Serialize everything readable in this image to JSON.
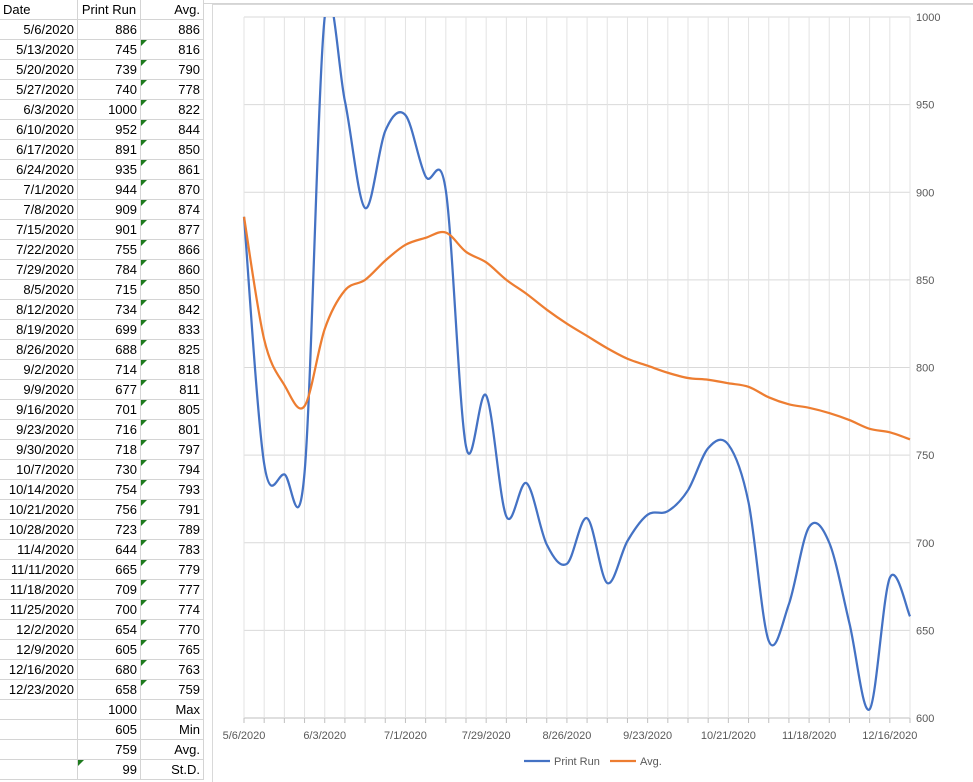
{
  "sheet": {
    "headers": [
      "Date",
      "Print Run",
      "Avg."
    ],
    "rows": [
      {
        "date": "5/6/2020",
        "run": "886",
        "avg": "886"
      },
      {
        "date": "5/13/2020",
        "run": "745",
        "avg": "816"
      },
      {
        "date": "5/20/2020",
        "run": "739",
        "avg": "790"
      },
      {
        "date": "5/27/2020",
        "run": "740",
        "avg": "778"
      },
      {
        "date": "6/3/2020",
        "run": "1000",
        "avg": "822"
      },
      {
        "date": "6/10/2020",
        "run": "952",
        "avg": "844"
      },
      {
        "date": "6/17/2020",
        "run": "891",
        "avg": "850"
      },
      {
        "date": "6/24/2020",
        "run": "935",
        "avg": "861"
      },
      {
        "date": "7/1/2020",
        "run": "944",
        "avg": "870"
      },
      {
        "date": "7/8/2020",
        "run": "909",
        "avg": "874"
      },
      {
        "date": "7/15/2020",
        "run": "901",
        "avg": "877"
      },
      {
        "date": "7/22/2020",
        "run": "755",
        "avg": "866"
      },
      {
        "date": "7/29/2020",
        "run": "784",
        "avg": "860"
      },
      {
        "date": "8/5/2020",
        "run": "715",
        "avg": "850"
      },
      {
        "date": "8/12/2020",
        "run": "734",
        "avg": "842"
      },
      {
        "date": "8/19/2020",
        "run": "699",
        "avg": "833"
      },
      {
        "date": "8/26/2020",
        "run": "688",
        "avg": "825"
      },
      {
        "date": "9/2/2020",
        "run": "714",
        "avg": "818"
      },
      {
        "date": "9/9/2020",
        "run": "677",
        "avg": "811"
      },
      {
        "date": "9/16/2020",
        "run": "701",
        "avg": "805"
      },
      {
        "date": "9/23/2020",
        "run": "716",
        "avg": "801"
      },
      {
        "date": "9/30/2020",
        "run": "718",
        "avg": "797"
      },
      {
        "date": "10/7/2020",
        "run": "730",
        "avg": "794"
      },
      {
        "date": "10/14/2020",
        "run": "754",
        "avg": "793"
      },
      {
        "date": "10/21/2020",
        "run": "756",
        "avg": "791"
      },
      {
        "date": "10/28/2020",
        "run": "723",
        "avg": "789"
      },
      {
        "date": "11/4/2020",
        "run": "644",
        "avg": "783"
      },
      {
        "date": "11/11/2020",
        "run": "665",
        "avg": "779"
      },
      {
        "date": "11/18/2020",
        "run": "709",
        "avg": "777"
      },
      {
        "date": "11/25/2020",
        "run": "700",
        "avg": "774"
      },
      {
        "date": "12/2/2020",
        "run": "654",
        "avg": "770"
      },
      {
        "date": "12/9/2020",
        "run": "605",
        "avg": "765"
      },
      {
        "date": "12/16/2020",
        "run": "680",
        "avg": "763"
      },
      {
        "date": "12/23/2020",
        "run": "658",
        "avg": "759"
      }
    ],
    "summary": [
      {
        "value": "1000",
        "label": "Max"
      },
      {
        "value": "605",
        "label": "Min"
      },
      {
        "value": "759",
        "label": "Avg."
      },
      {
        "value": "99",
        "label": "St.D."
      }
    ],
    "flag_color": "#1e7a1e"
  },
  "chart_data": {
    "type": "line",
    "x": [
      "5/6/2020",
      "5/13/2020",
      "5/20/2020",
      "5/27/2020",
      "6/3/2020",
      "6/10/2020",
      "6/17/2020",
      "6/24/2020",
      "7/1/2020",
      "7/8/2020",
      "7/15/2020",
      "7/22/2020",
      "7/29/2020",
      "8/5/2020",
      "8/12/2020",
      "8/19/2020",
      "8/26/2020",
      "9/2/2020",
      "9/9/2020",
      "9/16/2020",
      "9/23/2020",
      "9/30/2020",
      "10/7/2020",
      "10/14/2020",
      "10/21/2020",
      "10/28/2020",
      "11/4/2020",
      "11/11/2020",
      "11/18/2020",
      "11/25/2020",
      "12/2/2020",
      "12/9/2020",
      "12/16/2020",
      "12/23/2020"
    ],
    "x_tick_labels": [
      "5/6/2020",
      "6/3/2020",
      "7/1/2020",
      "7/29/2020",
      "8/26/2020",
      "9/23/2020",
      "10/21/2020",
      "11/18/2020",
      "12/16/2020"
    ],
    "series": [
      {
        "name": "Print Run",
        "color": "#4472c4",
        "values": [
          886,
          745,
          739,
          740,
          1000,
          952,
          891,
          935,
          944,
          909,
          901,
          755,
          784,
          715,
          734,
          699,
          688,
          714,
          677,
          701,
          716,
          718,
          730,
          754,
          756,
          723,
          644,
          665,
          709,
          700,
          654,
          605,
          680,
          658
        ]
      },
      {
        "name": "Avg.",
        "color": "#ed7d31",
        "values": [
          886,
          816,
          790,
          778,
          822,
          844,
          850,
          861,
          870,
          874,
          877,
          866,
          860,
          850,
          842,
          833,
          825,
          818,
          811,
          805,
          801,
          797,
          794,
          793,
          791,
          789,
          783,
          779,
          777,
          774,
          770,
          765,
          763,
          759
        ]
      }
    ],
    "ylim": [
      600,
      1000
    ],
    "y_ticks": [
      "600",
      "650",
      "700",
      "750",
      "800",
      "850",
      "900",
      "950",
      "1000"
    ],
    "y_axis_side": "right",
    "grid": true,
    "smooth": true,
    "legend_position": "bottom",
    "title": "",
    "xlabel": "",
    "ylabel": ""
  }
}
